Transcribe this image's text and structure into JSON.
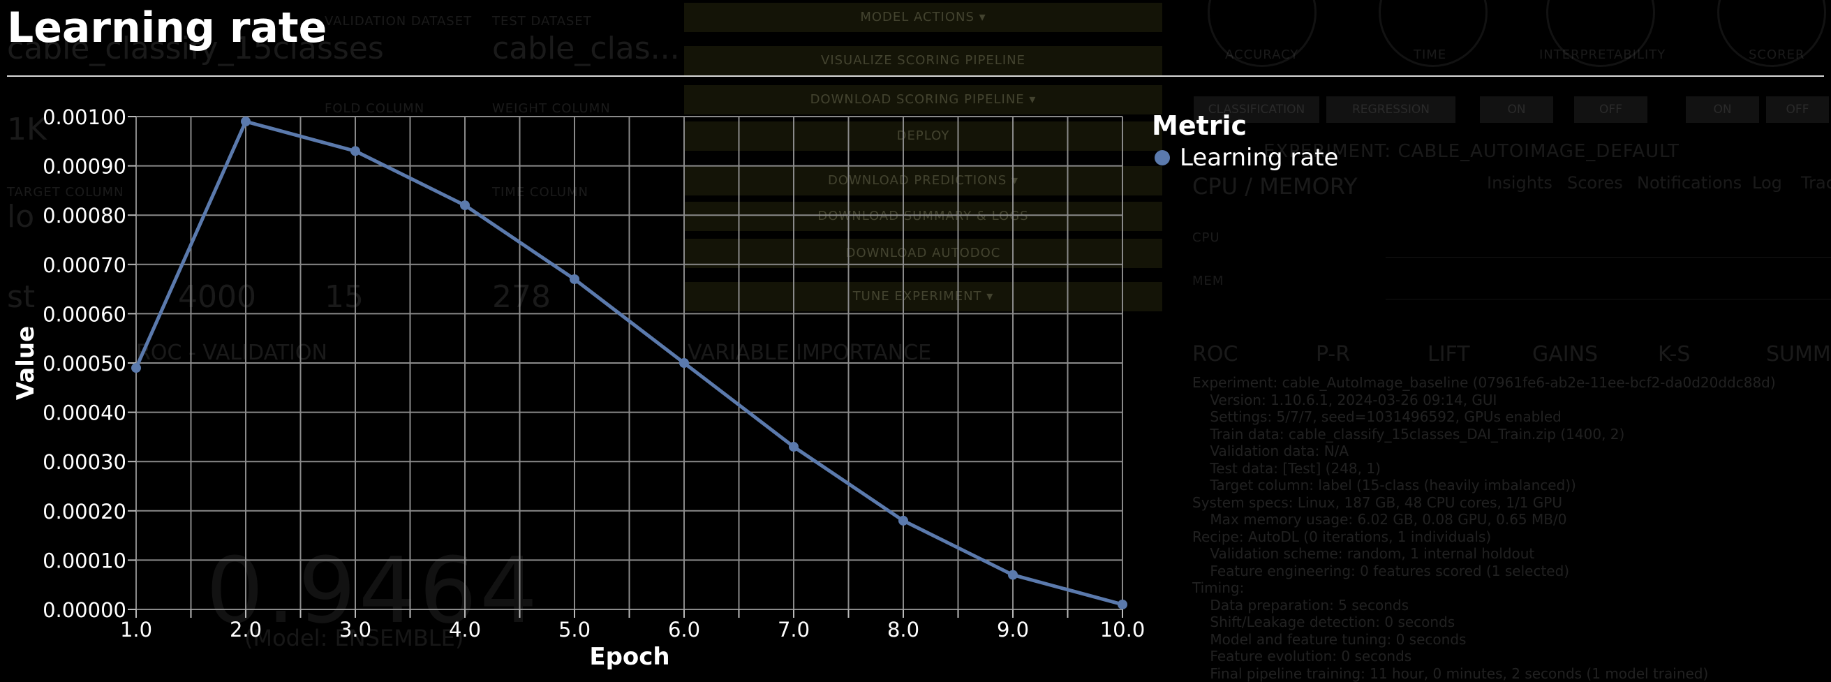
{
  "chart_data": {
    "type": "line",
    "title": "Learning rate",
    "xlabel": "Epoch",
    "ylabel": "Value",
    "xlim": [
      1.0,
      10.0
    ],
    "ylim": [
      0,
      0.001
    ],
    "x_ticks": [
      "1.0",
      "2.0",
      "3.0",
      "4.0",
      "5.0",
      "6.0",
      "7.0",
      "8.0",
      "9.0",
      "10.0"
    ],
    "y_ticks": [
      "0.00000",
      "0.00010",
      "0.00020",
      "0.00030",
      "0.00040",
      "0.00050",
      "0.00060",
      "0.00070",
      "0.00080",
      "0.00090",
      "0.00100"
    ],
    "legend_title": "Metric",
    "legend_position": "right",
    "grid": true,
    "series": [
      {
        "name": "Learning rate",
        "color": "#5b7aad",
        "x": [
          1,
          2,
          3,
          4,
          5,
          6,
          7,
          8,
          9,
          10
        ],
        "y": [
          0.00049,
          0.00099,
          0.00093,
          0.00082,
          0.00067,
          0.0005,
          0.00033,
          0.00018,
          7e-05,
          1e-05
        ]
      }
    ]
  },
  "background": {
    "labels": [
      "VALIDATION DATASET",
      "TEST DATASET",
      "FOLD COLUMN",
      "WEIGHT COLUMN",
      "TARGET COLUMN",
      "TIME COLUMN",
      "ACCURACY",
      "TIME",
      "INTERPRETABILITY",
      "SCORER"
    ],
    "values": [
      "cable_classify_15classes",
      "cable_clas...",
      "1K",
      "lo",
      "st",
      "4000",
      "15",
      "278"
    ],
    "buttons": [
      "MODEL ACTIONS ▾",
      "VISUALIZE SCORING PIPELINE",
      "DOWNLOAD SCORING PIPELINE ▾",
      "DEPLOY",
      "DOWNLOAD PREDICTIONS ▾",
      "DOWNLOAD SUMMARY & LOGS",
      "DOWNLOAD AUTODOC",
      "TUNE EXPERIMENT ▾"
    ],
    "toggles": [
      "CLASSIFICATION",
      "REGRESSION",
      "ON",
      "OFF",
      "ON",
      "OFF"
    ],
    "experiment": "EXPERIMENT: CABLE_AUTOIMAGE_DEFAULT",
    "section_cpu": "CPU / MEMORY",
    "tabs": [
      "Insights",
      "Scores",
      "Notifications",
      "Log",
      "Trace"
    ],
    "cpu_labels": [
      "CPU",
      "MEM"
    ],
    "sections": [
      "ROC - VALIDATION",
      "VARIABLE IMPORTANCE"
    ],
    "result_tabs": [
      "ROC",
      "P-R",
      "LIFT",
      "GAINS",
      "K-S",
      "SUMMARY"
    ],
    "log_text": "Experiment: cable_AutoImage_baseline (07961fe6-ab2e-11ee-bcf2-da0d20ddc88d)\n    Version: 1.10.6.1, 2024-03-26 09:14, GUI\n    Settings: 5/7/7, seed=1031496592, GPUs enabled\n    Train data: cable_classify_15classes_DAI_Train.zip (1400, 2)\n    Validation data: N/A\n    Test data: [Test] (248, 1)\n    Target column: label (15-class (heavily imbalanced))\nSystem specs: Linux, 187 GB, 48 CPU cores, 1/1 GPU\n    Max memory usage: 6.02 GB, 0.08 GPU, 0.65 MB/0\nRecipe: AutoDL (0 iterations, 1 individuals)\n    Validation scheme: random, 1 internal holdout\n    Feature engineering: 0 features scored (1 selected)\nTiming:\n    Data preparation: 5 seconds\n    Shift/Leakage detection: 0 seconds\n    Model and feature tuning: 0 seconds\n    Feature evolution: 0 seconds\n    Final pipeline training: 11 hour, 0 minutes, 2 seconds (1 model trained)",
    "score": "0.9464",
    "model": "(Model: ENSEMBLE)"
  }
}
